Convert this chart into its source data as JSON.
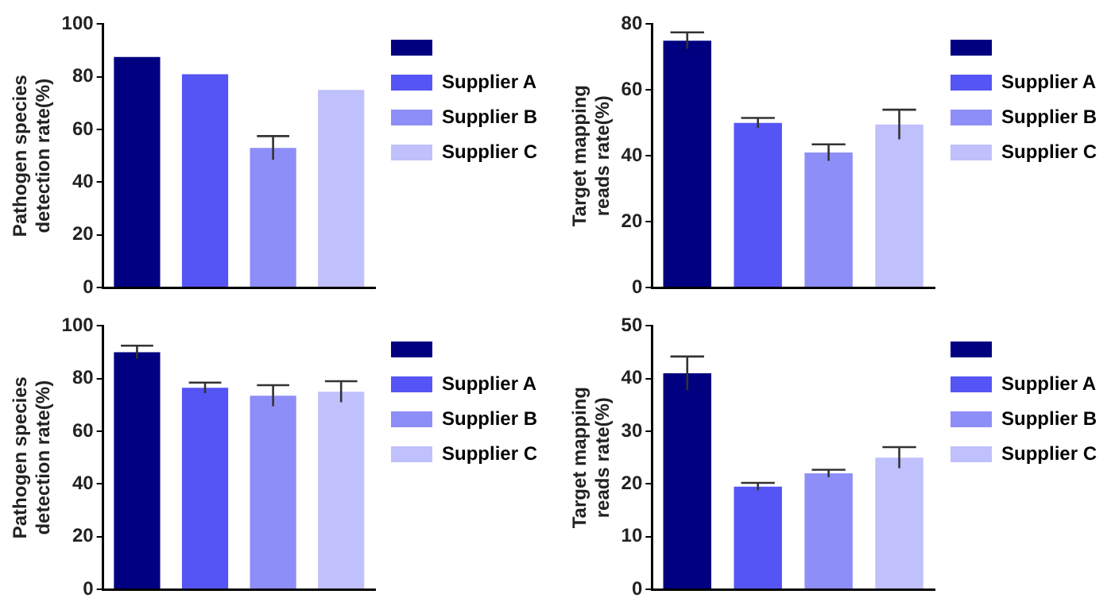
{
  "chart_data": [
    {
      "type": "bar",
      "ylabel": "Pathogen species detection rate(%)",
      "categories": [
        null,
        null,
        null,
        null
      ],
      "series": [
        {
          "color": "#000080",
          "values": [
            87.5,
            null,
            null,
            null
          ]
        },
        {
          "name": "Supplier A",
          "color": "#5555f5",
          "values": [
            null,
            81,
            null,
            null
          ]
        },
        {
          "name": "Supplier B",
          "color": "#8e8ef8",
          "values": [
            null,
            null,
            53,
            null
          ],
          "errors": [
            null,
            null,
            4.5,
            null
          ]
        },
        {
          "name": "Supplier C",
          "color": "#c0c0fc",
          "values": [
            null,
            null,
            null,
            75
          ]
        }
      ],
      "ylim": [
        0,
        100
      ],
      "yticks": [
        0,
        20,
        40,
        60,
        80,
        100
      ],
      "grid": false,
      "legend": "right",
      "tick_labels": "y"
    },
    {
      "type": "bar",
      "ylabel": "Target mapping reads rate(%)",
      "categories": [
        null,
        null,
        null,
        null
      ],
      "series": [
        {
          "color": "#000080",
          "values": [
            75,
            null,
            null,
            null
          ],
          "errors": [
            2.5,
            null,
            null,
            null
          ]
        },
        {
          "name": "Supplier A",
          "color": "#5555f5",
          "values": [
            null,
            50,
            null,
            null
          ],
          "errors": [
            null,
            1.5,
            null,
            null
          ]
        },
        {
          "name": "Supplier B",
          "color": "#8e8ef8",
          "values": [
            null,
            null,
            41,
            null
          ],
          "errors": [
            null,
            null,
            2.5,
            null
          ]
        },
        {
          "name": "Supplier C",
          "color": "#c0c0fc",
          "values": [
            null,
            null,
            null,
            49.5
          ],
          "errors": [
            null,
            null,
            null,
            4.5
          ]
        }
      ],
      "ylim": [
        0,
        80
      ],
      "yticks": [
        0,
        20,
        40,
        60,
        80
      ],
      "grid": false,
      "legend": "right",
      "tick_labels": "y"
    },
    {
      "type": "bar",
      "ylabel": "Pathogen species detection rate(%)",
      "categories": [
        null,
        null,
        null,
        null
      ],
      "series": [
        {
          "color": "#000080",
          "values": [
            90,
            null,
            null,
            null
          ],
          "errors": [
            2.5,
            null,
            null,
            null
          ]
        },
        {
          "name": "Supplier A",
          "color": "#5555f5",
          "values": [
            null,
            76.5,
            null,
            null
          ],
          "errors": [
            null,
            2,
            null,
            null
          ]
        },
        {
          "name": "Supplier B",
          "color": "#8e8ef8",
          "values": [
            null,
            null,
            73.5,
            null
          ],
          "errors": [
            null,
            null,
            4,
            null
          ]
        },
        {
          "name": "Supplier C",
          "color": "#c0c0fc",
          "values": [
            null,
            null,
            null,
            75
          ],
          "errors": [
            null,
            null,
            null,
            4
          ]
        }
      ],
      "ylim": [
        0,
        100
      ],
      "yticks": [
        0,
        20,
        40,
        60,
        80,
        100
      ],
      "grid": false,
      "legend": "right",
      "tick_labels": "y"
    },
    {
      "type": "bar",
      "ylabel": "Target mapping reads rate(%)",
      "categories": [
        null,
        null,
        null,
        null
      ],
      "series": [
        {
          "color": "#000080",
          "values": [
            41,
            null,
            null,
            null
          ],
          "errors": [
            3.2,
            null,
            null,
            null
          ]
        },
        {
          "name": "Supplier A",
          "color": "#5555f5",
          "values": [
            null,
            19.5,
            null,
            null
          ],
          "errors": [
            null,
            0.7,
            null,
            null
          ]
        },
        {
          "name": "Supplier B",
          "color": "#8e8ef8",
          "values": [
            null,
            null,
            22,
            null
          ],
          "errors": [
            null,
            null,
            0.7,
            null
          ]
        },
        {
          "name": "Supplier C",
          "color": "#c0c0fc",
          "values": [
            null,
            null,
            null,
            25
          ],
          "errors": [
            null,
            null,
            null,
            2
          ]
        }
      ],
      "ylim": [
        0,
        50
      ],
      "yticks": [
        0,
        10,
        20,
        30,
        40,
        50
      ],
      "grid": false,
      "legend": "right",
      "tick_labels": "y"
    }
  ]
}
